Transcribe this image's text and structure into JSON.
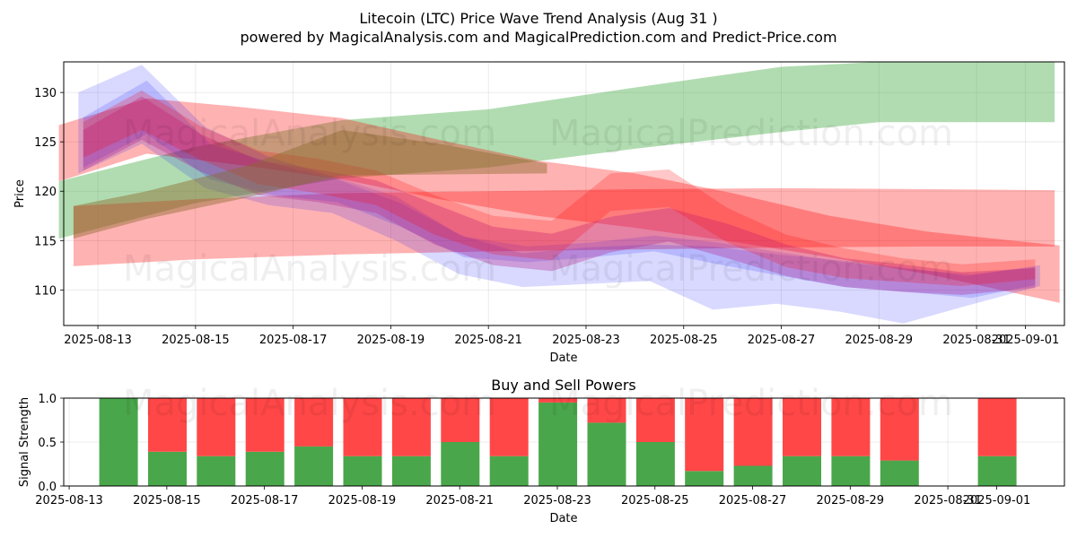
{
  "page": {
    "title_line1": "Litecoin (LTC) Price Wave Trend Analysis (Aug 31 )",
    "title_line2": "powered by MagicalAnalysis.com and MagicalPrediction.com and Predict-Price.com",
    "watermark_left": "MagicalAnalysis.com",
    "watermark_right": "MagicalPrediction.com"
  },
  "colors": {
    "green_band": "#2ca02c",
    "red_band": "#ff0000",
    "blue_band": "#0000ff",
    "purple_band": "#b0208a",
    "olive_band": "#8b6a2e",
    "buy": "#4aa64a",
    "sell": "#ff4747"
  },
  "chart_data": [
    {
      "type": "area",
      "title": "",
      "xlabel": "Date",
      "ylabel": "Price",
      "ylim": [
        106.4,
        133.1
      ],
      "xlim_days": [
        12.3,
        32.8
      ],
      "x_ticks": [
        "2025-08-13",
        "2025-08-15",
        "2025-08-17",
        "2025-08-19",
        "2025-08-21",
        "2025-08-23",
        "2025-08-25",
        "2025-08-27",
        "2025-08-29",
        "2025-08-31",
        "2025-09-01"
      ],
      "x_tick_days": [
        13,
        15,
        17,
        19,
        21,
        23,
        25,
        27,
        29,
        31,
        32
      ],
      "y_ticks": [
        110,
        115,
        120,
        125,
        130
      ],
      "grid": true,
      "bands": [
        {
          "name": "green-uptrend-band",
          "color": "green_band",
          "opacity": 0.37,
          "x": [
            12.2,
            15,
            18,
            21,
            24,
            27,
            29,
            32.6
          ],
          "upper": [
            121,
            124.5,
            127.2,
            128.3,
            130.5,
            132.6,
            133.1,
            133.1
          ],
          "lower": [
            115.2,
            118.8,
            121.3,
            122.4,
            124.3,
            126,
            127,
            127
          ]
        },
        {
          "name": "red-flat-band",
          "color": "red_band",
          "opacity": 0.3,
          "x": [
            12.5,
            15,
            18,
            21,
            24,
            27,
            30,
            32.6
          ],
          "upper": [
            118.5,
            119.2,
            119.8,
            120,
            120.2,
            120.3,
            120.2,
            120.1
          ],
          "lower": [
            112.4,
            113.1,
            113.6,
            113.9,
            114.1,
            114.3,
            114.4,
            114.4
          ]
        },
        {
          "name": "red-decline-band",
          "color": "red_band",
          "opacity": 0.3,
          "x": [
            12.2,
            14,
            16,
            18,
            20,
            22,
            24,
            26,
            28,
            30,
            32.7
          ],
          "upper": [
            126.7,
            129.4,
            128.5,
            127.4,
            125.2,
            123.1,
            121.8,
            119.8,
            117.5,
            115.9,
            114.5
          ],
          "lower": [
            121,
            123.8,
            122.6,
            121.2,
            119.2,
            117.5,
            116.3,
            114.9,
            113.3,
            111.6,
            108.7
          ]
        },
        {
          "name": "blue-wave-band",
          "color": "blue_band",
          "opacity": 0.15,
          "x": [
            12.6,
            13.9,
            15.2,
            16.5,
            17.8,
            19.1,
            20.4,
            21.7,
            23,
            24.3,
            25.6,
            26.9,
            28.2,
            29.5,
            30.8,
            32.3
          ],
          "upper": [
            130,
            132.8,
            126.5,
            123.5,
            121.5,
            119.5,
            115.6,
            113.7,
            114.3,
            114.6,
            114.4,
            113.6,
            113,
            112.3,
            111.4,
            112.5
          ],
          "lower": [
            121.8,
            124.8,
            120.3,
            118.6,
            117.8,
            115,
            111.6,
            110.3,
            110.6,
            110.9,
            108,
            108.6,
            107.8,
            106.6,
            108.4,
            110.4
          ]
        },
        {
          "name": "blue-inner-band",
          "color": "blue_band",
          "opacity": 0.15,
          "x": [
            12.7,
            14,
            15.3,
            16.6,
            17.9,
            19.2,
            20.5,
            21.8,
            23.1,
            24.4,
            25.7,
            27,
            28.3,
            29.6,
            30.9,
            32.2
          ],
          "upper": [
            127.5,
            131.2,
            124.8,
            122.8,
            121.2,
            118.8,
            115.4,
            114.4,
            114.8,
            115.5,
            114.8,
            113.8,
            112.8,
            112.1,
            111.6,
            112.3
          ],
          "lower": [
            122.4,
            125.8,
            121.2,
            119.6,
            118.9,
            116.4,
            113.3,
            112.8,
            113.3,
            113.9,
            112.6,
            111.4,
            110.3,
            109.8,
            109.2,
            110.5
          ]
        },
        {
          "name": "purple-wave-band",
          "color": "purple_band",
          "opacity": 0.32,
          "x": [
            12.7,
            13.9,
            15.1,
            16.3,
            17.5,
            18.7,
            19.9,
            21.1,
            22.3,
            23.5,
            24.7,
            25.9,
            27.1,
            28.3,
            29.5,
            30.7,
            32.2
          ],
          "upper": [
            126.2,
            129.6,
            125.8,
            123.1,
            122.2,
            121.1,
            118.7,
            116.4,
            115.7,
            117.4,
            118.3,
            116.7,
            114.6,
            113.2,
            112.6,
            111.8,
            112.2
          ],
          "lower": [
            122.1,
            125.2,
            122,
            119.6,
            118.9,
            117.8,
            114.6,
            112.5,
            111.9,
            113.8,
            114.9,
            113.2,
            111.4,
            110.3,
            109.8,
            109.5,
            110.2
          ]
        },
        {
          "name": "pink-wave-band",
          "color": "red_band",
          "opacity": 0.22,
          "x": [
            12.7,
            13.9,
            15.1,
            16.3,
            17.5,
            18.7,
            19.9,
            21.1,
            22.3,
            23.5,
            24.7,
            25.9,
            27.1,
            28.3,
            29.5,
            30.7,
            32.2
          ],
          "upper": [
            127,
            130.2,
            126.6,
            124.1,
            123.3,
            122.1,
            119.6,
            117.5,
            117,
            121.8,
            122.2,
            118.3,
            115.6,
            114.2,
            113.2,
            112.6,
            113.1
          ],
          "lower": [
            123.4,
            126.2,
            123.2,
            120.7,
            119.8,
            118.6,
            115.6,
            113.6,
            113,
            118,
            118.4,
            114.8,
            112.3,
            111.2,
            110.8,
            110.4,
            111.1
          ]
        },
        {
          "name": "olive-overlap-band",
          "color": "olive_band",
          "opacity": 0.45,
          "x": [
            12.5,
            14,
            16,
            18,
            20,
            22.2
          ],
          "upper": [
            118.5,
            120,
            122.5,
            126.2,
            124.8,
            122.8
          ],
          "lower": [
            115.2,
            117.2,
            119.3,
            121.6,
            121.7,
            121.8
          ]
        }
      ]
    },
    {
      "type": "bar",
      "title": "Buy and Sell Powers",
      "xlabel": "Date",
      "ylabel": "Signal Strength",
      "ylim": [
        0,
        1
      ],
      "xlim_days": [
        12.3,
        32.8
      ],
      "x_ticks": [
        "2025-08-13",
        "2025-08-15",
        "2025-08-17",
        "2025-08-19",
        "2025-08-21",
        "2025-08-23",
        "2025-08-25",
        "2025-08-27",
        "2025-08-29",
        "2025-08-31",
        "2025-09-01"
      ],
      "x_tick_days": [
        13,
        15,
        17,
        19,
        21,
        23,
        25,
        27,
        29,
        31,
        32
      ],
      "y_ticks": [
        "0.0",
        "0.5",
        "1.0"
      ],
      "y_tick_values": [
        0,
        0.5,
        1
      ],
      "categories": [
        "2025-08-14",
        "2025-08-15",
        "2025-08-16",
        "2025-08-17",
        "2025-08-18",
        "2025-08-19",
        "2025-08-20",
        "2025-08-21",
        "2025-08-22",
        "2025-08-23",
        "2025-08-24",
        "2025-08-25",
        "2025-08-26",
        "2025-08-27",
        "2025-08-28",
        "2025-08-29",
        "2025-08-30",
        "2025-09-01"
      ],
      "category_days": [
        14,
        15,
        16,
        17,
        18,
        19,
        20,
        21,
        22,
        23,
        24,
        25,
        26,
        27,
        28,
        29,
        30,
        32
      ],
      "series": [
        {
          "name": "Buy",
          "color": "buy",
          "values": [
            1.0,
            0.39,
            0.34,
            0.39,
            0.45,
            0.34,
            0.34,
            0.5,
            0.34,
            0.95,
            0.72,
            0.5,
            0.17,
            0.23,
            0.34,
            0.34,
            0.29,
            0.34
          ]
        },
        {
          "name": "Sell",
          "color": "sell",
          "values": [
            0.0,
            0.61,
            0.66,
            0.61,
            0.55,
            0.66,
            0.66,
            0.5,
            0.66,
            0.05,
            0.28,
            0.5,
            0.83,
            0.77,
            0.66,
            0.66,
            0.71,
            0.66
          ]
        }
      ]
    }
  ]
}
